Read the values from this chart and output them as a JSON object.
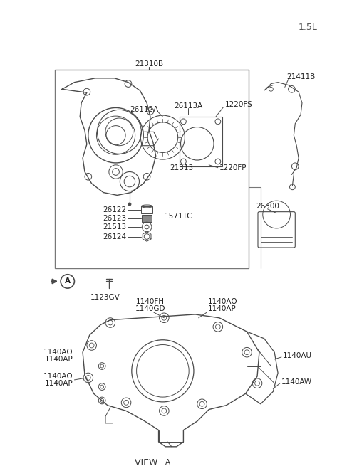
{
  "title": "1.5L",
  "background_color": "#ffffff",
  "line_color": "#4a4a4a",
  "text_color": "#222222",
  "figsize": [
    4.8,
    6.55
  ],
  "dpi": 100,
  "labels": {
    "top_label": "21310B",
    "upper_right_label": "21411B",
    "lbl_26113A": "26113A",
    "lbl_26112A": "26112A",
    "lbl_1220FS": "1220FS",
    "lbl_21313": "21313",
    "lbl_1220FP": "1220FP",
    "lbl_26122": "26122",
    "lbl_26123": "26123",
    "lbl_1571TC": "1571TC",
    "lbl_21513": "21513",
    "lbl_26124": "26124",
    "lbl_26300": "26300",
    "lbl_1123GV": "1123GV",
    "lbl_1140FH": "1140FH",
    "lbl_1140GD": "1140GD",
    "lbl_1140AO_tr": "1140AO",
    "lbl_1140AP_tr": "1140AP",
    "lbl_1140AO_l1": "1140AO",
    "lbl_1140AP_l1": "1140AP",
    "lbl_1140AO_l2": "1140AO",
    "lbl_1140AP_l2": "1140AP",
    "lbl_1140AU": "1140AU",
    "lbl_1140AW": "1140AW"
  }
}
